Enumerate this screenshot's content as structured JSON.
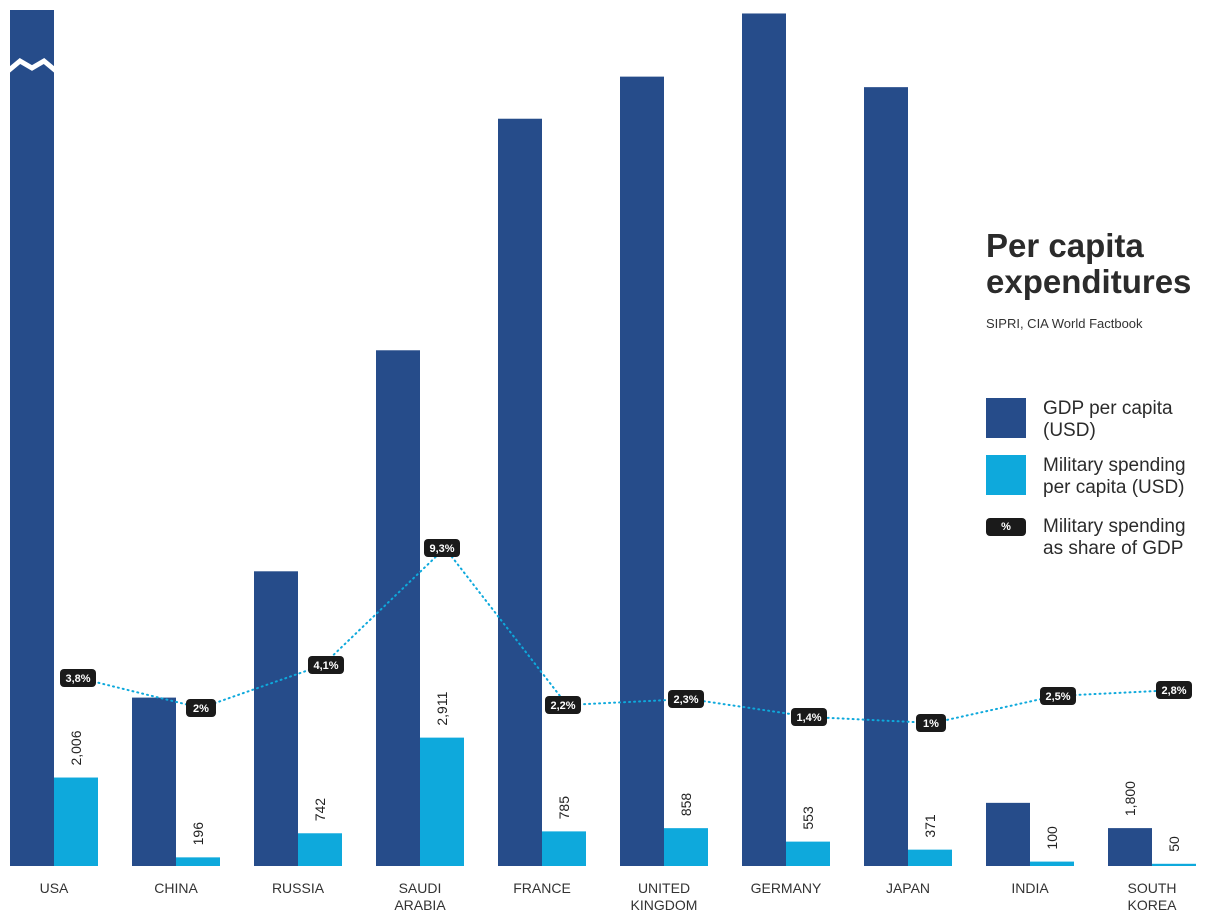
{
  "chart_data": {
    "type": "bar",
    "title": "Per capita\nexpenditures",
    "subtitle": "SIPRI, CIA World Factbook",
    "categories": [
      "USA",
      "CHINA",
      "RUSSIA",
      "SAUDI\nARABIA",
      "FRANCE",
      "UNITED\nKINGDOM",
      "GERMANY",
      "JAPAN",
      "INDIA",
      "SOUTH\nKOREA"
    ],
    "series": [
      {
        "name": "GDP per capita\n(USD)",
        "color": "#264c8a",
        "values": [
          53000,
          8000,
          14000,
          24500,
          35500,
          37500,
          40500,
          37000,
          3000,
          1800
        ],
        "value_labels": [
          "",
          "",
          "",
          "",
          "",
          "",
          "",
          "",
          "",
          "1,800"
        ]
      },
      {
        "name": "Military spending\nper capita (USD)",
        "color": "#0ea9dc",
        "values": [
          2006,
          196,
          742,
          2911,
          785,
          858,
          553,
          371,
          100,
          50
        ],
        "value_labels": [
          "2,006",
          "196",
          "742",
          "2,911",
          "785",
          "858",
          "553",
          "371",
          "100",
          "50"
        ]
      }
    ],
    "share_of_gdp": {
      "name": "Military spending\nas share of GDP",
      "legend_symbol": "%",
      "values": [
        3.8,
        2.0,
        4.1,
        9.3,
        2.2,
        2.3,
        1.4,
        1.0,
        2.5,
        2.8
      ],
      "labels": [
        "3,8%",
        "2%",
        "4,1%",
        "9,3%",
        "2,2%",
        "2,3%",
        "1,4%",
        "1%",
        "2,5%",
        "2,8%"
      ],
      "color": "#0ea9dc"
    },
    "axis_break_on_first_bar": true
  }
}
